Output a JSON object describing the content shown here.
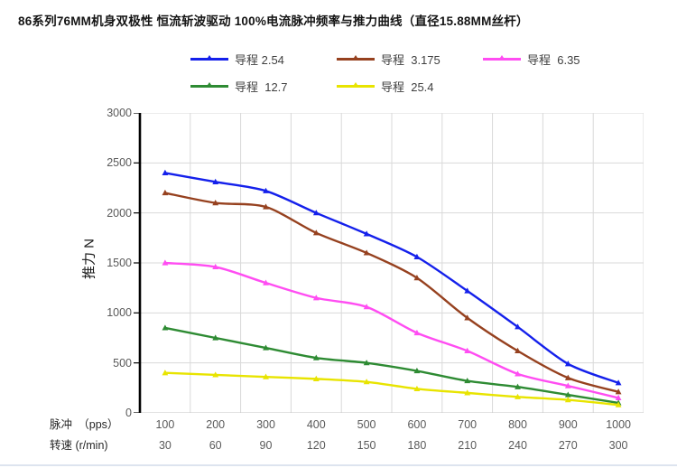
{
  "title": "86系列76MM机身双极性 恒流斩波驱动 100%电流脉冲频率与推力曲线（直径15.88MM丝杆）",
  "y_axis_title": "推力 N",
  "x_row_labels": {
    "pulse": "脉冲　（pps）",
    "speed": "转速 (r/min)"
  },
  "chart_data": {
    "type": "line",
    "title": "86系列76MM机身双极性 恒流斩波驱动 100%电流脉冲频率与推力曲线（直径15.88MM丝杆）",
    "ylabel": "推力 N",
    "ylim": [
      0,
      3000
    ],
    "yticks": [
      0,
      500,
      1000,
      1500,
      2000,
      2500,
      3000
    ],
    "grid": true,
    "legend_position": "top",
    "x_axis_rows": [
      {
        "label": "脉冲　（pps）",
        "values": [
          100,
          200,
          300,
          400,
          500,
          600,
          700,
          800,
          900,
          1000
        ]
      },
      {
        "label": "转速 (r/min)",
        "values": [
          30,
          60,
          90,
          120,
          150,
          180,
          210,
          240,
          270,
          300
        ]
      }
    ],
    "series": [
      {
        "name": "导程 2.54",
        "color": "#1420eb",
        "values": [
          2400,
          2310,
          2220,
          2000,
          1790,
          1560,
          1220,
          860,
          490,
          300
        ]
      },
      {
        "name": "导程  3.175",
        "color": "#96411f",
        "values": [
          2200,
          2100,
          2060,
          1800,
          1600,
          1350,
          950,
          620,
          350,
          210
        ]
      },
      {
        "name": "导程  6.35",
        "color": "#ff4df2",
        "values": [
          1500,
          1460,
          1300,
          1150,
          1060,
          800,
          620,
          390,
          270,
          150
        ]
      },
      {
        "name": "导程  12.7",
        "color": "#2e8b33",
        "values": [
          850,
          750,
          650,
          550,
          500,
          420,
          320,
          260,
          180,
          100
        ]
      },
      {
        "name": "导程  25.4",
        "color": "#e8e400",
        "values": [
          400,
          380,
          360,
          340,
          310,
          240,
          200,
          160,
          130,
          80
        ]
      }
    ],
    "colors": {
      "grid": "#d9d9d9",
      "axis": "#000000",
      "bottom_axis": "#c6c6c6",
      "tick_text": "#595959"
    }
  }
}
